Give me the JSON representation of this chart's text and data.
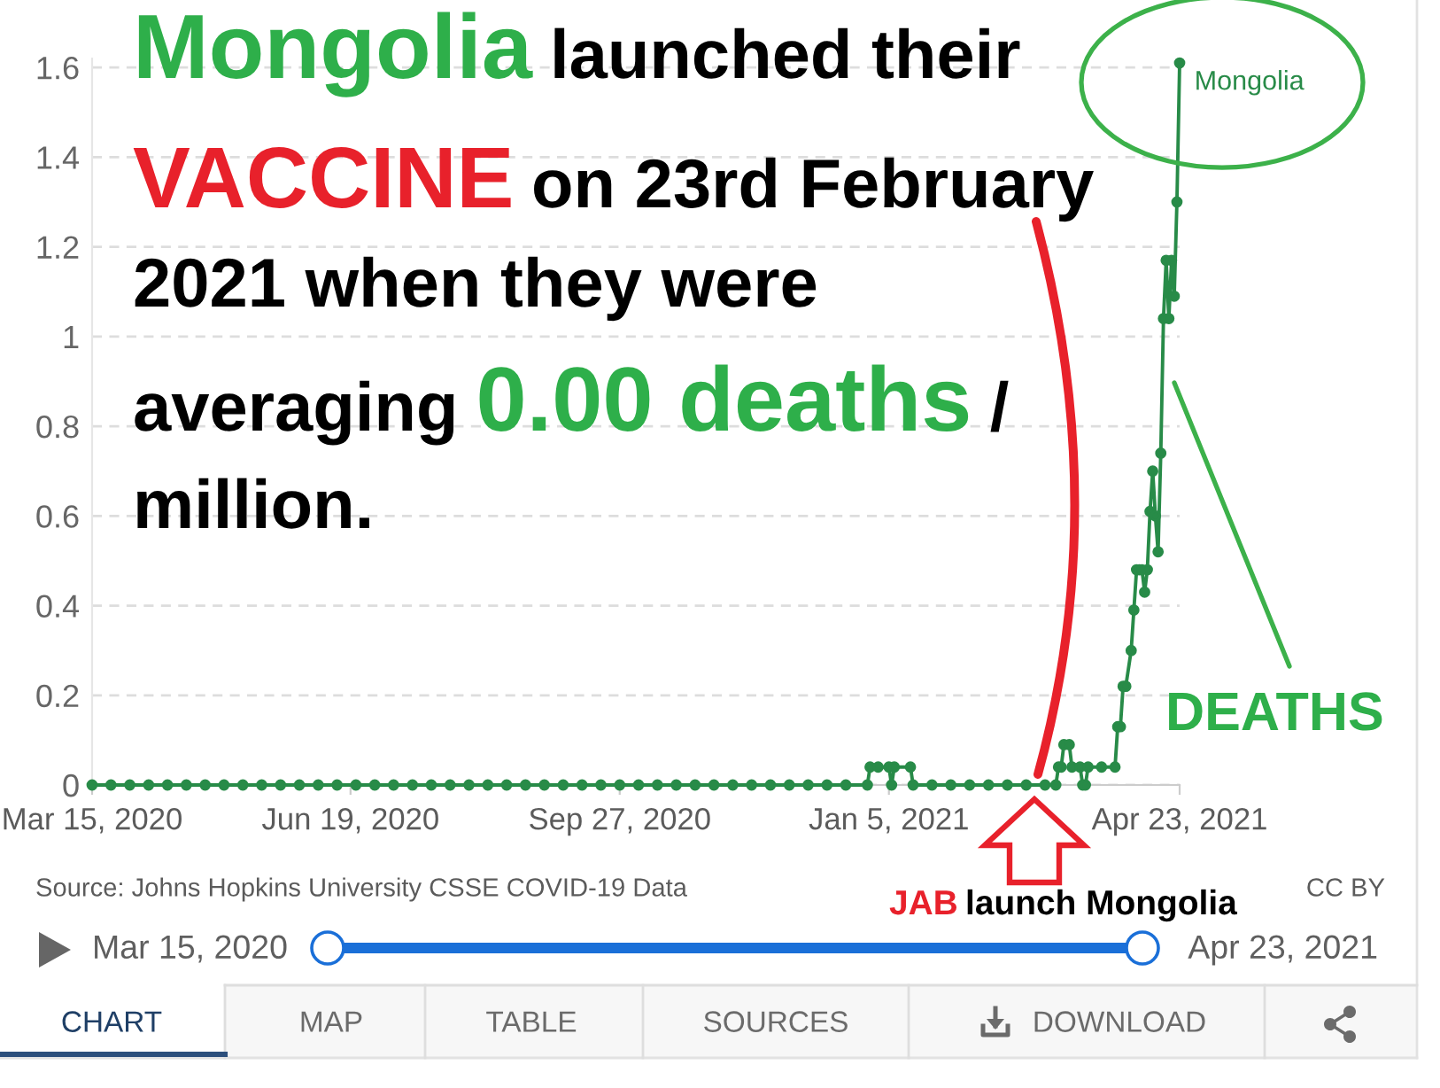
{
  "chart_data": {
    "type": "line",
    "series": [
      {
        "name": "Mongolia",
        "color": "#288b48",
        "x": [
          "2020-03-15",
          "2020-03-22",
          "2020-03-29",
          "2020-04-05",
          "2020-04-12",
          "2020-04-19",
          "2020-04-26",
          "2020-05-03",
          "2020-05-10",
          "2020-05-17",
          "2020-05-24",
          "2020-05-31",
          "2020-06-07",
          "2020-06-14",
          "2020-06-21",
          "2020-06-28",
          "2020-07-05",
          "2020-07-12",
          "2020-07-19",
          "2020-07-26",
          "2020-08-02",
          "2020-08-09",
          "2020-08-16",
          "2020-08-23",
          "2020-08-30",
          "2020-09-06",
          "2020-09-13",
          "2020-09-20",
          "2020-09-27",
          "2020-10-04",
          "2020-10-11",
          "2020-10-18",
          "2020-10-25",
          "2020-11-01",
          "2020-11-08",
          "2020-11-15",
          "2020-11-22",
          "2020-11-29",
          "2020-12-06",
          "2020-12-13",
          "2020-12-20",
          "2020-12-28",
          "2020-12-29",
          "2021-01-01",
          "2021-01-05",
          "2021-01-06",
          "2021-01-07",
          "2021-01-13",
          "2021-01-14",
          "2021-01-21",
          "2021-01-28",
          "2021-02-04",
          "2021-02-11",
          "2021-02-18",
          "2021-02-25",
          "2021-03-04",
          "2021-03-08",
          "2021-03-09",
          "2021-03-10",
          "2021-03-11",
          "2021-03-13",
          "2021-03-14",
          "2021-03-17",
          "2021-03-18",
          "2021-03-19",
          "2021-03-20",
          "2021-03-25",
          "2021-03-30",
          "2021-03-31",
          "2021-04-01",
          "2021-04-02",
          "2021-04-03",
          "2021-04-05",
          "2021-04-06",
          "2021-04-07",
          "2021-04-08",
          "2021-04-09",
          "2021-04-10",
          "2021-04-11",
          "2021-04-12",
          "2021-04-13",
          "2021-04-14",
          "2021-04-15",
          "2021-04-16",
          "2021-04-17",
          "2021-04-18",
          "2021-04-19",
          "2021-04-20",
          "2021-04-21",
          "2021-04-22",
          "2021-04-23"
        ],
        "values": [
          0,
          0,
          0,
          0,
          0,
          0,
          0,
          0,
          0,
          0,
          0,
          0,
          0,
          0,
          0,
          0,
          0,
          0,
          0,
          0,
          0,
          0,
          0,
          0,
          0,
          0,
          0,
          0,
          0,
          0,
          0,
          0,
          0,
          0,
          0,
          0,
          0,
          0,
          0,
          0,
          0,
          0,
          0.04,
          0.04,
          0.04,
          0,
          0.04,
          0.04,
          0,
          0,
          0,
          0,
          0,
          0,
          0,
          0,
          0,
          0.04,
          0.04,
          0.09,
          0.09,
          0.04,
          0.04,
          0,
          0,
          0.04,
          0.04,
          0.04,
          0.13,
          0.13,
          0.22,
          0.22,
          0.3,
          0.39,
          0.48,
          0.48,
          0.48,
          0.43,
          0.48,
          0.61,
          0.7,
          0.6,
          0.52,
          0.74,
          1.04,
          1.17,
          1.04,
          1.17,
          1.09,
          1.3,
          1.61
        ]
      }
    ],
    "xlim": [
      "2020-03-15",
      "2021-04-23"
    ],
    "ylim": [
      0,
      1.62
    ],
    "xticks": [
      {
        "value": "2020-03-15",
        "label": "Mar 15, 2020"
      },
      {
        "value": "2020-06-19",
        "label": "Jun 19, 2020"
      },
      {
        "value": "2020-09-27",
        "label": "Sep 27, 2020"
      },
      {
        "value": "2021-01-05",
        "label": "Jan 5, 2021"
      },
      {
        "value": "2021-04-23",
        "label": "Apr 23, 2021"
      }
    ],
    "yticks": [
      0,
      0.2,
      0.4,
      0.6,
      0.8,
      1,
      1.2,
      1.4,
      1.6
    ],
    "grid": "y",
    "marker": "circle",
    "annotations": [
      "Mongolia launched their VACCINE on 23rd February 2021 when they were averaging 0.00 deaths / million.",
      "DEATHS",
      "JAB launch Mongolia",
      "Source: Johns Hopkins University CSSE COVID-19 Data",
      "CC BY",
      "Mar 15, 2020",
      "Apr 23, 2021",
      "CHART",
      "MAP",
      "TABLE",
      "SOURCES",
      "DOWNLOAD"
    ]
  }
}
